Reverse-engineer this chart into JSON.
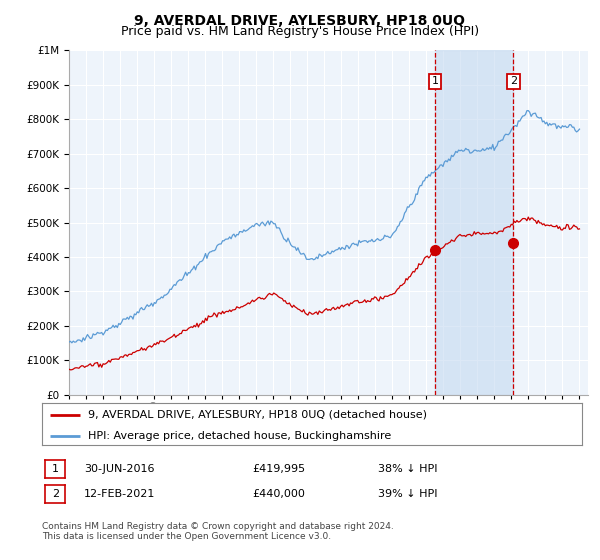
{
  "title": "9, AVERDAL DRIVE, AYLESBURY, HP18 0UQ",
  "subtitle": "Price paid vs. HM Land Registry's House Price Index (HPI)",
  "ylim": [
    0,
    1000000
  ],
  "yticks": [
    0,
    100000,
    200000,
    300000,
    400000,
    500000,
    600000,
    700000,
    800000,
    900000,
    1000000
  ],
  "hpi_color": "#5b9bd5",
  "price_color": "#cc0000",
  "marker_color": "#cc0000",
  "vline_color": "#cc0000",
  "background_color": "#ffffff",
  "plot_bg_color": "#eef4fb",
  "shade_color": "#c5daf0",
  "grid_color": "#ffffff",
  "legend_label_red": "9, AVERDAL DRIVE, AYLESBURY, HP18 0UQ (detached house)",
  "legend_label_blue": "HPI: Average price, detached house, Buckinghamshire",
  "annotation1": {
    "label": "1",
    "date": "30-JUN-2016",
    "price": "£419,995",
    "pct": "38% ↓ HPI"
  },
  "annotation2": {
    "label": "2",
    "date": "12-FEB-2021",
    "price": "£440,000",
    "pct": "39% ↓ HPI"
  },
  "footnote": "Contains HM Land Registry data © Crown copyright and database right 2024.\nThis data is licensed under the Open Government Licence v3.0.",
  "title_fontsize": 10,
  "subtitle_fontsize": 9,
  "tick_fontsize": 7.5,
  "legend_fontsize": 8,
  "footnote_fontsize": 6.5,
  "sale1_year": 2016.5,
  "sale1_price": 419995,
  "sale2_year": 2021.12,
  "sale2_price": 440000
}
